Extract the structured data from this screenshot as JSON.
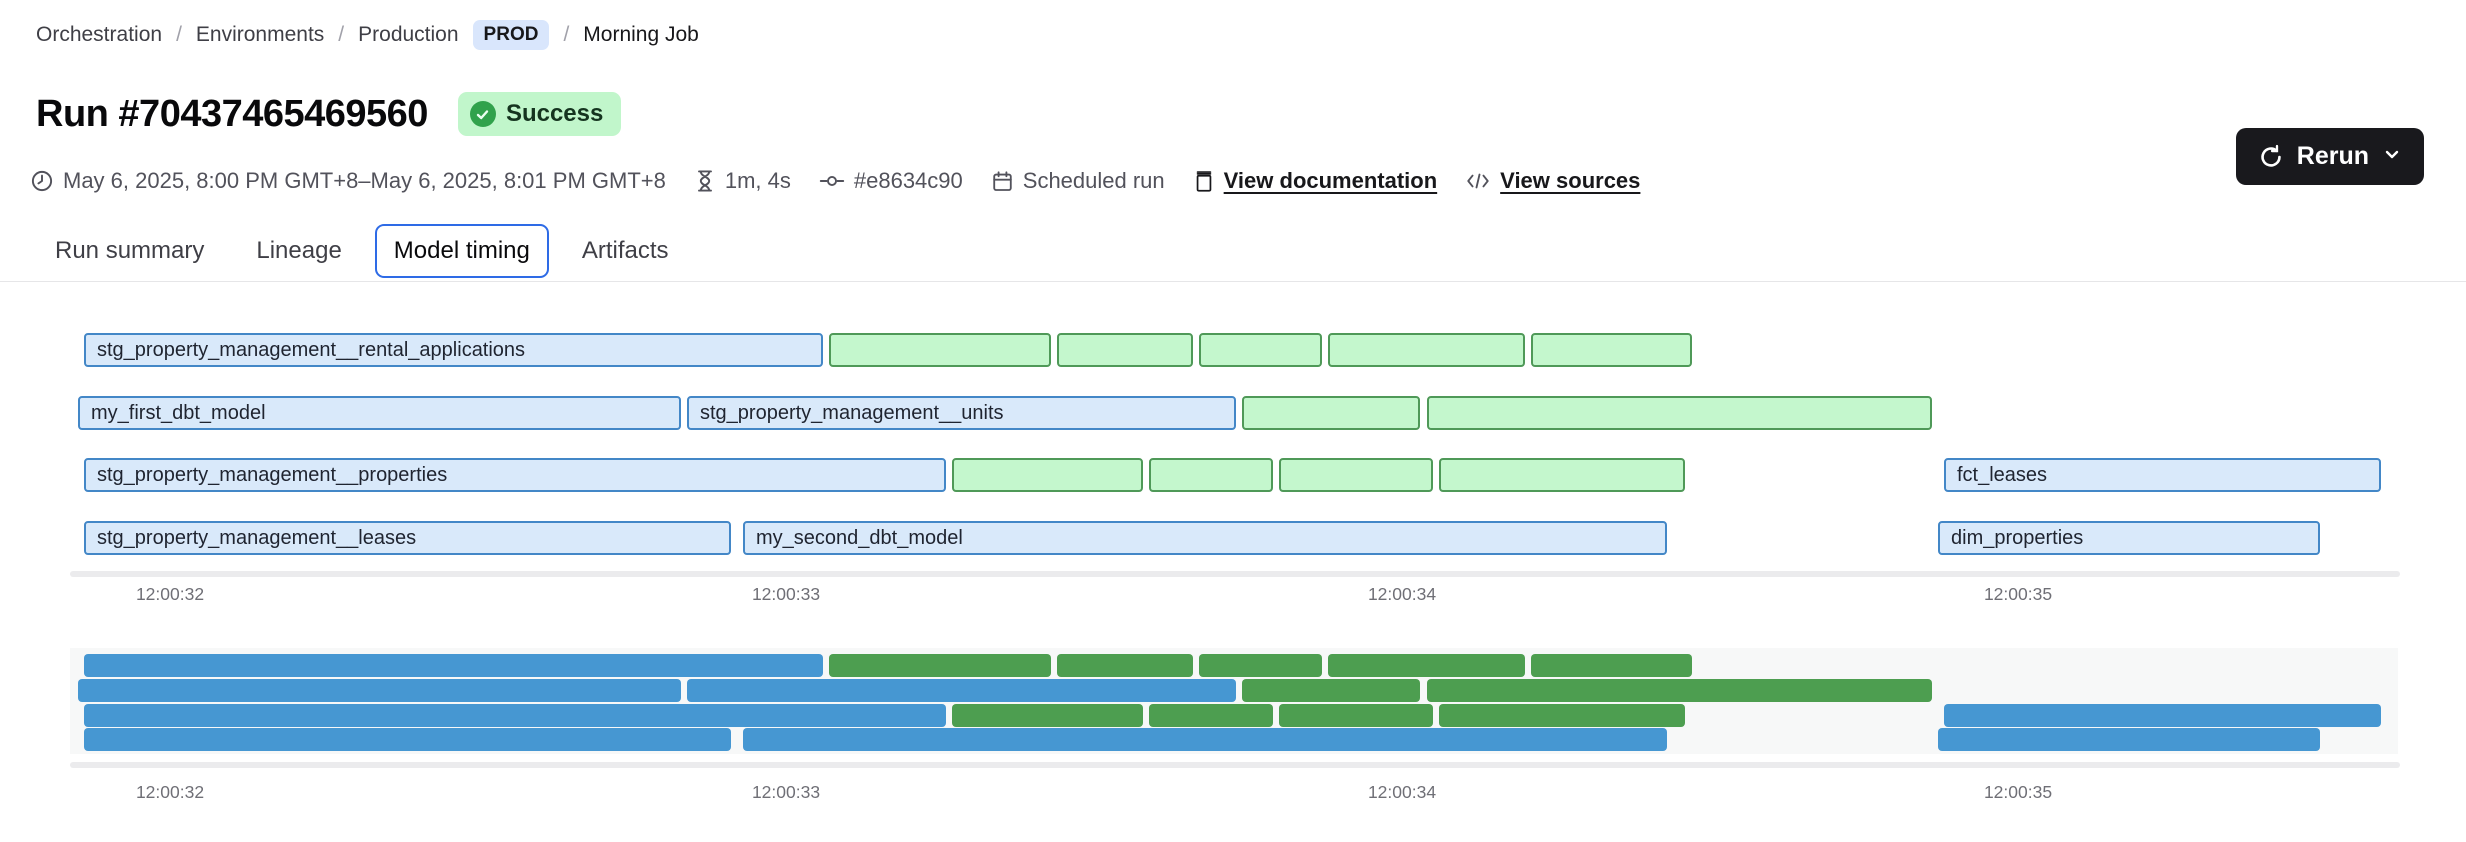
{
  "breadcrumb": {
    "separator": "/",
    "items": [
      "Orchestration",
      "Environments",
      "Production"
    ],
    "env_badge": "PROD",
    "current": "Morning Job"
  },
  "header": {
    "title": "Run #70437465469560",
    "status_label": "Success"
  },
  "toolbar": {
    "rerun_label": "Rerun"
  },
  "meta": {
    "time_range": "May 6, 2025, 8:00 PM GMT+8–May 6, 2025, 8:01 PM GMT+8",
    "duration": "1m, 4s",
    "commit_hash": "#e8634c90",
    "run_type": "Scheduled run",
    "view_documentation": "View documentation",
    "view_sources": "View sources"
  },
  "tabs": [
    {
      "label": "Run summary",
      "active": false
    },
    {
      "label": "Lineage",
      "active": false
    },
    {
      "label": "Model timing",
      "active": true
    },
    {
      "label": "Artifacts",
      "active": false
    }
  ],
  "chart_data": {
    "type": "gantt",
    "title": "Model timing",
    "axis": {
      "ticks": [
        "12:00:32",
        "12:00:33",
        "12:00:34",
        "12:00:35"
      ],
      "tick_seconds": [
        32,
        33,
        34,
        35
      ]
    },
    "colors": {
      "blue_fill": "#d9e9fa",
      "blue_border": "#4387c7",
      "green_fill": "#c4f7cd",
      "green_border": "#4f9958",
      "mini_blue": "#4697d2",
      "mini_green": "#4d9e50"
    },
    "rows": [
      {
        "bars": [
          {
            "label": "stg_property_management__rental_applications",
            "color": "blue",
            "start": 31.86,
            "end": 33.06
          },
          {
            "label": "",
            "color": "green",
            "start": 33.07,
            "end": 33.43
          },
          {
            "label": "",
            "color": "green",
            "start": 33.44,
            "end": 33.66
          },
          {
            "label": "",
            "color": "green",
            "start": 33.67,
            "end": 33.87
          },
          {
            "label": "",
            "color": "green",
            "start": 33.88,
            "end": 34.2
          },
          {
            "label": "",
            "color": "green",
            "start": 34.21,
            "end": 34.47
          }
        ]
      },
      {
        "bars": [
          {
            "label": "my_first_dbt_model",
            "color": "blue",
            "start": 31.85,
            "end": 32.83
          },
          {
            "label": "stg_property_management__units",
            "color": "blue",
            "start": 32.84,
            "end": 33.73
          },
          {
            "label": "",
            "color": "green",
            "start": 33.74,
            "end": 34.03
          },
          {
            "label": "",
            "color": "green",
            "start": 34.04,
            "end": 34.86
          }
        ]
      },
      {
        "bars": [
          {
            "label": "stg_property_management__properties",
            "color": "blue",
            "start": 31.86,
            "end": 33.26
          },
          {
            "label": "",
            "color": "green",
            "start": 33.27,
            "end": 33.58
          },
          {
            "label": "",
            "color": "green",
            "start": 33.59,
            "end": 33.79
          },
          {
            "label": "",
            "color": "green",
            "start": 33.8,
            "end": 34.05
          },
          {
            "label": "",
            "color": "green",
            "start": 34.06,
            "end": 34.46
          },
          {
            "label": "fct_leases",
            "color": "blue",
            "start": 34.88,
            "end": 35.59
          }
        ]
      },
      {
        "bars": [
          {
            "label": "stg_property_management__leases",
            "color": "blue",
            "start": 31.86,
            "end": 32.91
          },
          {
            "label": "my_second_dbt_model",
            "color": "blue",
            "start": 32.93,
            "end": 34.43
          },
          {
            "label": "dim_properties",
            "color": "blue",
            "start": 34.87,
            "end": 35.49
          }
        ]
      }
    ]
  }
}
